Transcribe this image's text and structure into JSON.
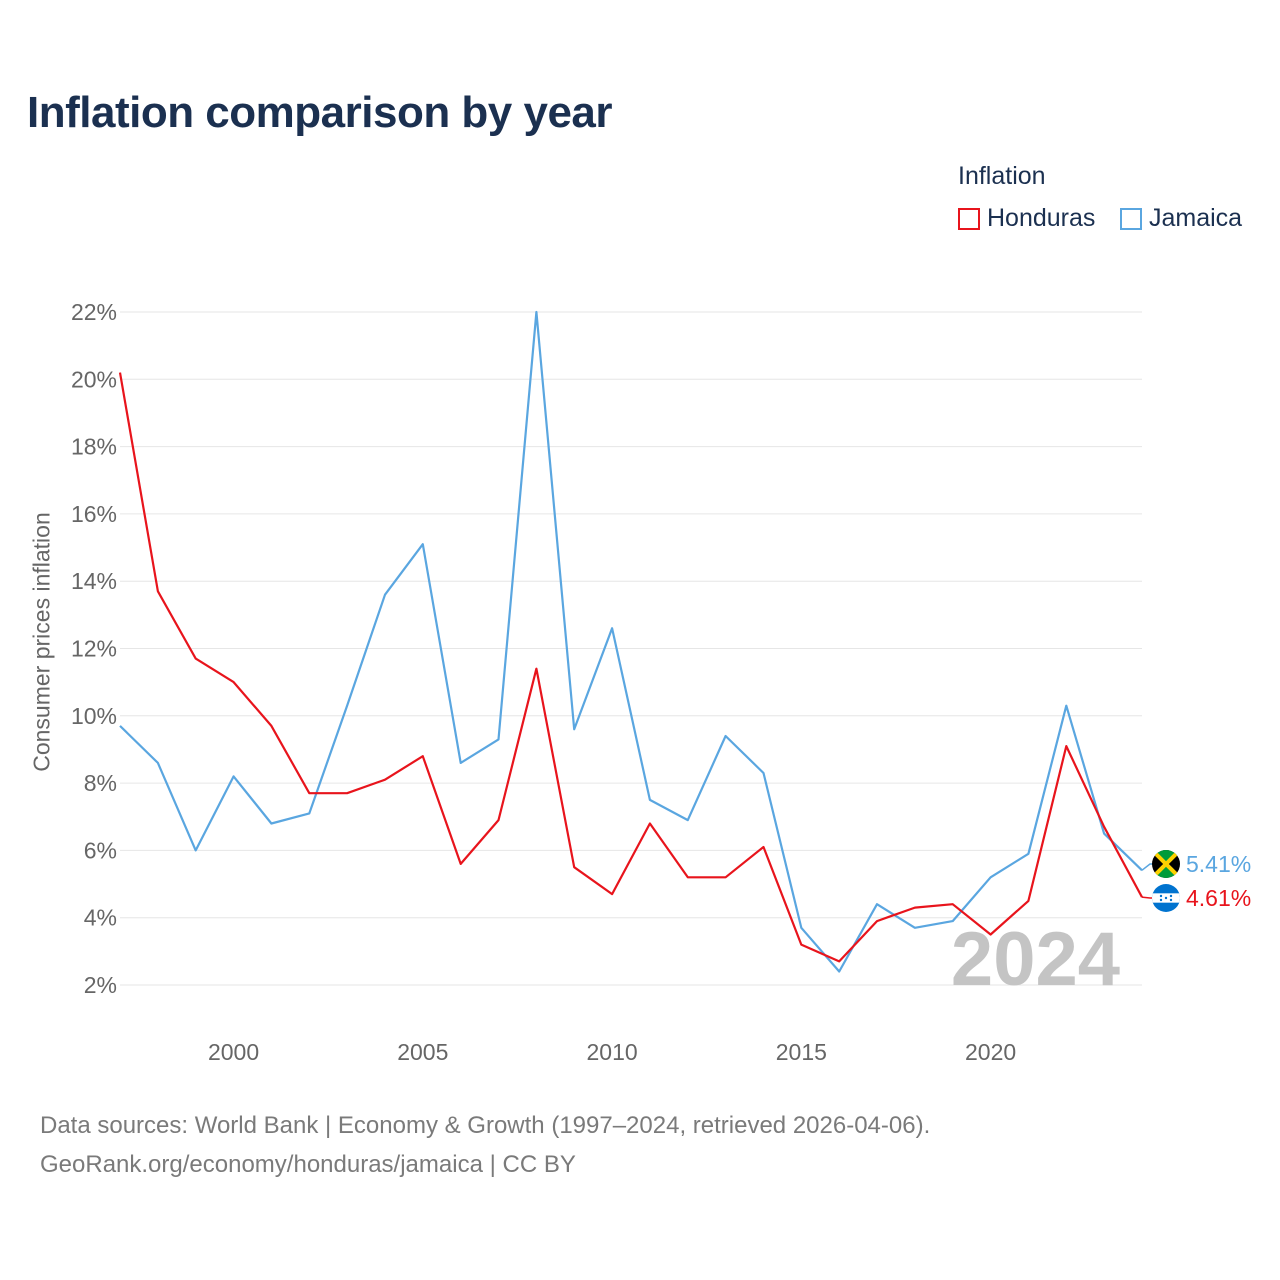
{
  "header": {
    "title": "Inflation comparison by year"
  },
  "legend": {
    "title": "Inflation",
    "items": [
      {
        "label": "Honduras",
        "color": "#e8141c"
      },
      {
        "label": "Jamaica",
        "color": "#5aa6e0"
      }
    ]
  },
  "footer": {
    "line1": "Data sources: World Bank | Economy & Growth (1997–2024, retrieved 2026-04-06).",
    "line2": "GeoRank.org/economy/honduras/jamaica | CC BY"
  },
  "chart_data": {
    "type": "line",
    "title": "Inflation comparison by year",
    "xlabel": "",
    "ylabel": "Consumer prices inflation",
    "x": [
      1997,
      1998,
      1999,
      2000,
      2001,
      2002,
      2003,
      2004,
      2005,
      2006,
      2007,
      2008,
      2009,
      2010,
      2011,
      2012,
      2013,
      2014,
      2015,
      2016,
      2017,
      2018,
      2019,
      2020,
      2021,
      2022,
      2023,
      2024
    ],
    "xlim": [
      1997,
      2024
    ],
    "ylim": [
      2,
      22
    ],
    "xticks": [
      2000,
      2005,
      2010,
      2015,
      2020
    ],
    "yticks": [
      2,
      4,
      6,
      8,
      10,
      12,
      14,
      16,
      18,
      20,
      22
    ],
    "ytick_labels": [
      "2%",
      "4%",
      "6%",
      "8%",
      "10%",
      "12%",
      "14%",
      "16%",
      "18%",
      "20%",
      "22%"
    ],
    "grid": true,
    "legend_position": "top-right",
    "current_year_label": "2024",
    "series": [
      {
        "name": "Honduras",
        "color": "#e8141c",
        "values": [
          20.2,
          13.7,
          11.7,
          11.0,
          9.7,
          7.7,
          7.7,
          8.1,
          8.8,
          5.6,
          6.9,
          11.4,
          5.5,
          4.7,
          6.8,
          5.2,
          5.2,
          6.1,
          3.2,
          2.7,
          3.9,
          4.3,
          4.4,
          3.5,
          4.5,
          9.1,
          6.7,
          4.61
        ],
        "end_label": "4.61%",
        "flag": "honduras-flag"
      },
      {
        "name": "Jamaica",
        "color": "#5aa6e0",
        "values": [
          9.7,
          8.6,
          6.0,
          8.2,
          6.8,
          7.1,
          10.3,
          13.6,
          15.1,
          8.6,
          9.3,
          22.0,
          9.6,
          12.6,
          7.5,
          6.9,
          9.4,
          8.3,
          3.7,
          2.4,
          4.4,
          3.7,
          3.9,
          5.2,
          5.9,
          10.3,
          6.5,
          5.41
        ],
        "end_label": "5.41%",
        "flag": "jamaica-flag"
      }
    ]
  }
}
